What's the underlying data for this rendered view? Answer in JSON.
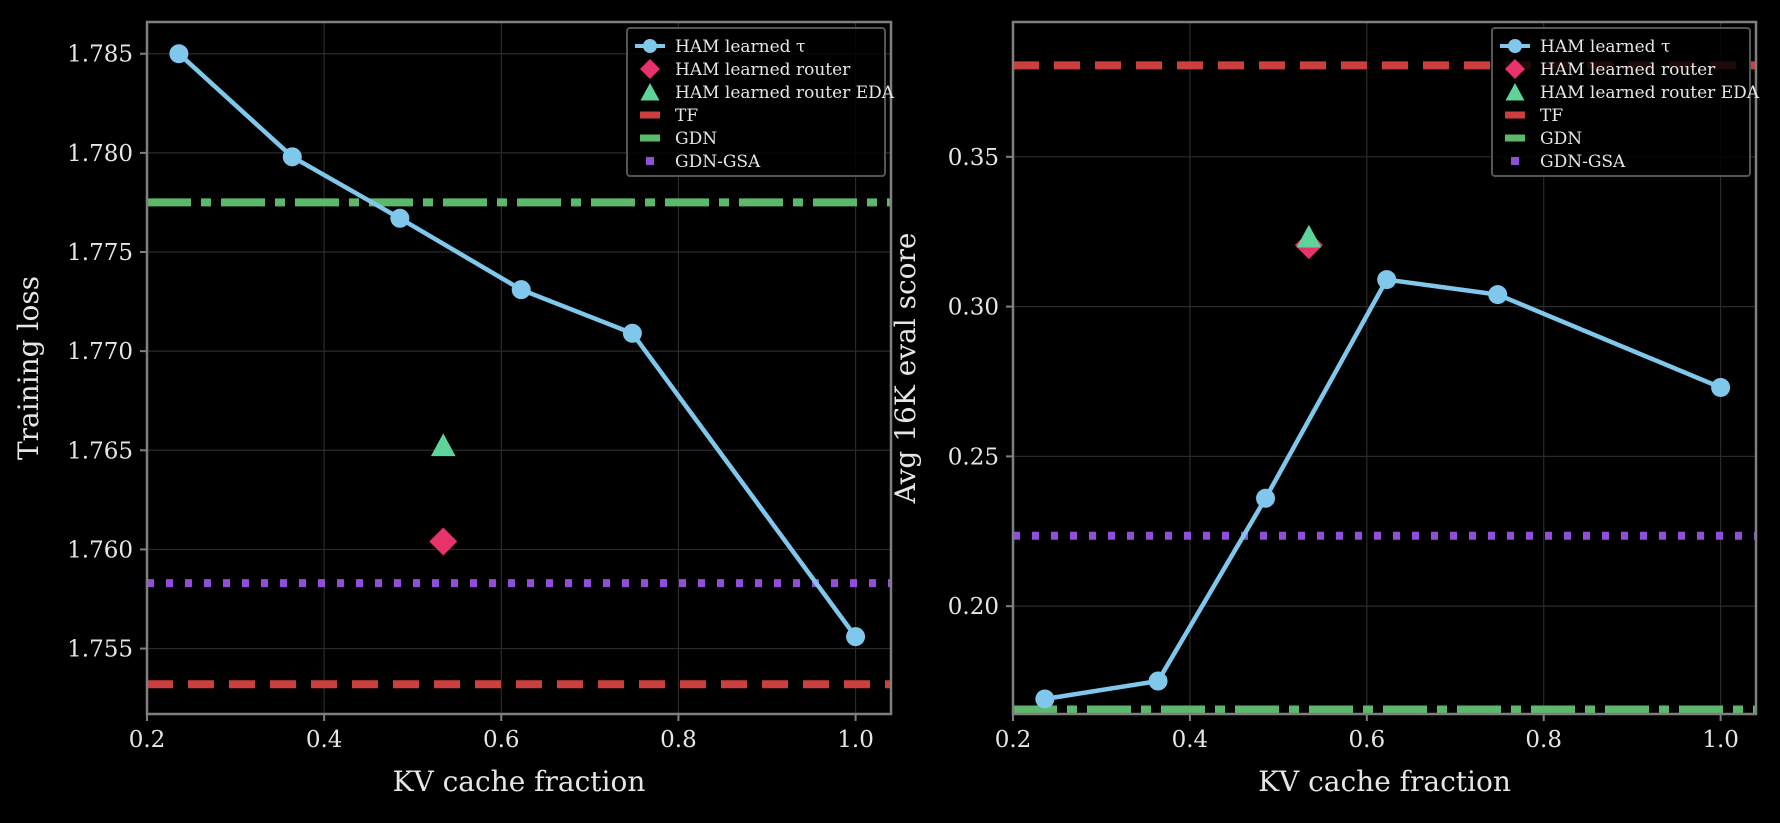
{
  "colors": {
    "background": "#000000",
    "axes_frame": "#7f7f7f",
    "grid": "#2a2a2a",
    "text": "#e6e6e6",
    "ham": "#7fc8ec",
    "router": "#e8336a",
    "router_eda": "#5fd49a",
    "tf": "#cc3f3f",
    "gdn": "#5cb86a",
    "gdn_gsa": "#8f4fd8",
    "legend_bg": "#000000",
    "legend_edge": "#555555"
  },
  "legend": {
    "placement": "top-right",
    "entries": [
      {
        "key": "ham",
        "label": "HAM learned τ",
        "style": "line-marker-circle"
      },
      {
        "key": "router",
        "label": "HAM learned router",
        "style": "marker-diamond"
      },
      {
        "key": "router_eda",
        "label": "HAM learned router EDA",
        "style": "marker-triangle"
      },
      {
        "key": "tf",
        "label": "TF",
        "style": "dashed"
      },
      {
        "key": "gdn",
        "label": "GDN",
        "style": "dashdot"
      },
      {
        "key": "gdn_gsa",
        "label": "GDN-GSA",
        "style": "dotted"
      }
    ]
  },
  "chart_data": [
    {
      "type": "line",
      "title": "",
      "xlabel": "KV cache fraction",
      "ylabel": "Training loss",
      "xlim": [
        0.2,
        1.04
      ],
      "ylim": [
        1.7517,
        1.7866
      ],
      "xticks": [
        0.2,
        0.4,
        0.6,
        0.8,
        1.0
      ],
      "xtick_labels": [
        "0.2",
        "0.4",
        "0.6",
        "0.8",
        "1.0"
      ],
      "yticks": [
        1.755,
        1.76,
        1.765,
        1.77,
        1.775,
        1.78,
        1.785
      ],
      "ytick_labels": [
        "1.755",
        "1.760",
        "1.765",
        "1.770",
        "1.775",
        "1.780",
        "1.785"
      ],
      "grid": true,
      "series": [
        {
          "name": "HAM learned τ",
          "key": "ham",
          "x": [
            0.236,
            0.364,
            0.4855,
            0.6225,
            0.748,
            1.0
          ],
          "y": [
            1.785,
            1.7798,
            1.7767,
            1.7731,
            1.7709,
            1.7556
          ]
        }
      ],
      "points": [
        {
          "name": "HAM learned router",
          "key": "router",
          "marker": "diamond",
          "x": 0.5345,
          "y": 1.7604
        },
        {
          "name": "HAM learned router EDA",
          "key": "router_eda",
          "marker": "triangle",
          "x": 0.5345,
          "y": 1.7652
        }
      ],
      "hlines": [
        {
          "name": "TF",
          "key": "tf",
          "style": "dashed",
          "y": 1.7532
        },
        {
          "name": "GDN",
          "key": "gdn",
          "style": "dashdot",
          "y": 1.7775
        },
        {
          "name": "GDN-GSA",
          "key": "gdn_gsa",
          "style": "dotted",
          "y": 1.7583
        }
      ]
    },
    {
      "type": "line",
      "title": "",
      "xlabel": "KV cache fraction",
      "ylabel": "Avg 16K eval score",
      "xlim": [
        0.2,
        1.04
      ],
      "ylim": [
        0.164,
        0.395
      ],
      "xticks": [
        0.2,
        0.4,
        0.6,
        0.8,
        1.0
      ],
      "xtick_labels": [
        "0.2",
        "0.4",
        "0.6",
        "0.8",
        "1.0"
      ],
      "yticks": [
        0.2,
        0.25,
        0.3,
        0.35
      ],
      "ytick_labels": [
        "0.20",
        "0.25",
        "0.30",
        "0.35"
      ],
      "grid": true,
      "series": [
        {
          "name": "HAM learned τ",
          "key": "ham",
          "x": [
            0.236,
            0.364,
            0.4855,
            0.6225,
            0.748,
            1.0
          ],
          "y": [
            0.169,
            0.175,
            0.236,
            0.309,
            0.304,
            0.273
          ]
        }
      ],
      "points": [
        {
          "name": "HAM learned router",
          "key": "router",
          "marker": "diamond",
          "x": 0.5345,
          "y": 0.3205
        },
        {
          "name": "HAM learned router EDA",
          "key": "router_eda",
          "marker": "triangle",
          "x": 0.5345,
          "y": 0.323
        }
      ],
      "hlines": [
        {
          "name": "TF",
          "key": "tf",
          "style": "dashed",
          "y": 0.3805
        },
        {
          "name": "GDN",
          "key": "gdn",
          "style": "dashdot",
          "y": 0.1655
        },
        {
          "name": "GDN-GSA",
          "key": "gdn_gsa",
          "style": "dotted",
          "y": 0.2235
        }
      ]
    }
  ]
}
